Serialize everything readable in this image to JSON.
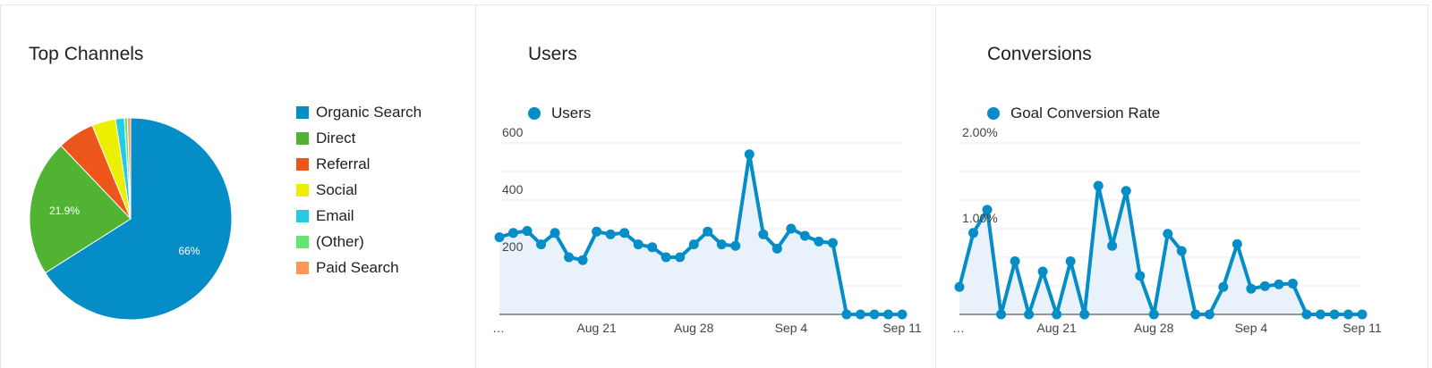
{
  "cards": {
    "channels_title": "Top Channels",
    "users_title": "Users",
    "conversions_title": "Conversions"
  },
  "colors": {
    "series": "#058dc7",
    "area": "#e9f2fa",
    "grid": "#eeeeee"
  },
  "chart_data": [
    {
      "type": "pie",
      "title": "Top Channels",
      "categories": [
        "Organic Search",
        "Direct",
        "Referral",
        "Social",
        "Email",
        "(Other)",
        "Paid Search"
      ],
      "values": [
        66.0,
        21.9,
        5.9,
        3.8,
        1.4,
        0.5,
        0.5
      ],
      "colors": [
        "#058dc7",
        "#50b432",
        "#ed561b",
        "#edef00",
        "#24cbe5",
        "#64e572",
        "#ff9655"
      ],
      "data_labels": [
        "66%",
        "21.9%",
        "",
        "",
        "",
        "",
        ""
      ],
      "legend_position": "right"
    },
    {
      "type": "area",
      "title": "Users",
      "series": [
        {
          "name": "Users",
          "values": [
            270,
            285,
            292,
            245,
            285,
            200,
            190,
            290,
            280,
            285,
            245,
            235,
            200,
            200,
            245,
            290,
            245,
            240,
            560,
            280,
            230,
            300,
            275,
            255,
            250,
            0,
            0,
            0,
            0,
            0
          ]
        }
      ],
      "x_ticks": [
        "…",
        "Aug 21",
        "Aug 28",
        "Sep 4",
        "Sep 11"
      ],
      "y_ticks": [
        "200",
        "400",
        "600"
      ],
      "ylim": [
        0,
        600
      ],
      "legend_position": "top-left"
    },
    {
      "type": "area",
      "title": "Conversions",
      "series": [
        {
          "name": "Goal Conversion Rate",
          "values": [
            0.32,
            0.95,
            1.22,
            0.0,
            0.62,
            0.0,
            0.5,
            0.0,
            0.62,
            0.0,
            1.5,
            0.8,
            1.44,
            0.45,
            0.0,
            0.94,
            0.74,
            0.0,
            0.0,
            0.32,
            0.82,
            0.3,
            0.33,
            0.35,
            0.36,
            0.0,
            0.0,
            0.0,
            0.0,
            0.0
          ]
        }
      ],
      "x_ticks": [
        "…",
        "Aug 21",
        "Aug 28",
        "Sep 4",
        "Sep 11"
      ],
      "y_ticks": [
        "1.00%",
        "2.00%"
      ],
      "ylim": [
        0,
        2.0
      ],
      "legend_position": "top-left"
    }
  ]
}
